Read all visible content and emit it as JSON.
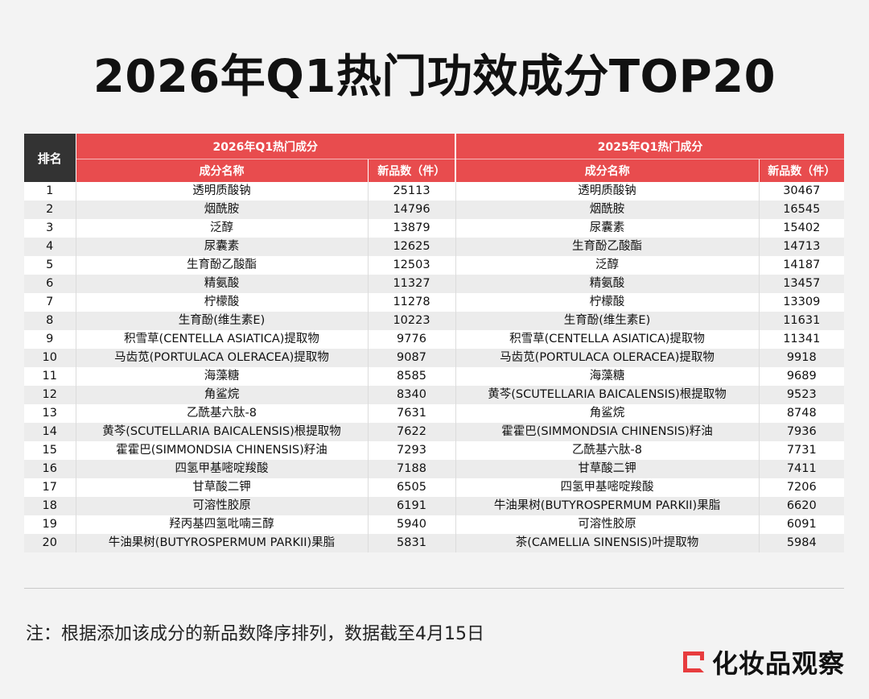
{
  "title": "2026年Q1热门功效成分TOP20",
  "table": {
    "rank_header": "排名",
    "group_2026": "2026年Q1热门成分",
    "group_2025": "2025年Q1热门成分",
    "col_name_2026": "成分名称",
    "col_count_2026": "新品数（件）",
    "col_name_2025": "成分名称",
    "col_count_2025": "新品数（件）",
    "rows": [
      {
        "rank": "1",
        "name26": "透明质酸钠",
        "count26": "25113",
        "name25": "透明质酸钠",
        "count25": "30467"
      },
      {
        "rank": "2",
        "name26": "烟酰胺",
        "count26": "14796",
        "name25": "烟酰胺",
        "count25": "16545"
      },
      {
        "rank": "3",
        "name26": "泛醇",
        "count26": "13879",
        "name25": "尿囊素",
        "count25": "15402"
      },
      {
        "rank": "4",
        "name26": "尿囊素",
        "count26": "12625",
        "name25": "生育酚乙酸酯",
        "count25": "14713"
      },
      {
        "rank": "5",
        "name26": "生育酚乙酸酯",
        "count26": "12503",
        "name25": "泛醇",
        "count25": "14187"
      },
      {
        "rank": "6",
        "name26": "精氨酸",
        "count26": "11327",
        "name25": "精氨酸",
        "count25": "13457"
      },
      {
        "rank": "7",
        "name26": "柠檬酸",
        "count26": "11278",
        "name25": "柠檬酸",
        "count25": "13309"
      },
      {
        "rank": "8",
        "name26": "生育酚(维生素E)",
        "count26": "10223",
        "name25": "生育酚(维生素E)",
        "count25": "11631"
      },
      {
        "rank": "9",
        "name26": "积雪草(CENTELLA ASIATICA)提取物",
        "count26": "9776",
        "name25": "积雪草(CENTELLA ASIATICA)提取物",
        "count25": "11341"
      },
      {
        "rank": "10",
        "name26": "马齿苋(PORTULACA OLERACEA)提取物",
        "count26": "9087",
        "name25": "马齿苋(PORTULACA OLERACEA)提取物",
        "count25": "9918"
      },
      {
        "rank": "11",
        "name26": "海藻糖",
        "count26": "8585",
        "name25": "海藻糖",
        "count25": "9689"
      },
      {
        "rank": "12",
        "name26": "角鲨烷",
        "count26": "8340",
        "name25": "黄芩(SCUTELLARIA BAICALENSIS)根提取物",
        "count25": "9523"
      },
      {
        "rank": "13",
        "name26": "乙酰基六肽-8",
        "count26": "7631",
        "name25": "角鲨烷",
        "count25": "8748"
      },
      {
        "rank": "14",
        "name26": "黄芩(SCUTELLARIA BAICALENSIS)根提取物",
        "count26": "7622",
        "name25": "霍霍巴(SIMMONDSIA CHINENSIS)籽油",
        "count25": "7936"
      },
      {
        "rank": "15",
        "name26": "霍霍巴(SIMMONDSIA CHINENSIS)籽油",
        "count26": "7293",
        "name25": "乙酰基六肽-8",
        "count25": "7731"
      },
      {
        "rank": "16",
        "name26": "四氢甲基嘧啶羧酸",
        "count26": "7188",
        "name25": "甘草酸二钾",
        "count25": "7411"
      },
      {
        "rank": "17",
        "name26": "甘草酸二钾",
        "count26": "6505",
        "name25": "四氢甲基嘧啶羧酸",
        "count25": "7206"
      },
      {
        "rank": "18",
        "name26": "可溶性胶原",
        "count26": "6191",
        "name25": "牛油果树(BUTYROSPERMUM PARKII)果脂",
        "count25": "6620"
      },
      {
        "rank": "19",
        "name26": "羟丙基四氢吡喃三醇",
        "count26": "5940",
        "name25": "可溶性胶原",
        "count25": "6091"
      },
      {
        "rank": "20",
        "name26": "牛油果树(BUTYROSPERMUM PARKII)果脂",
        "count26": "5831",
        "name25": "茶(CAMELLIA SINENSIS)叶提取物",
        "count25": "5984"
      }
    ]
  },
  "note": "注：根据添加该成分的新品数降序排列，数据截至4月15日",
  "brand": {
    "name": "化妆品观察",
    "accent_color": "#e73c3e"
  },
  "colors": {
    "header_dark": "#333333",
    "header_red": "#e84c4e",
    "row_alt": "#ececec"
  }
}
